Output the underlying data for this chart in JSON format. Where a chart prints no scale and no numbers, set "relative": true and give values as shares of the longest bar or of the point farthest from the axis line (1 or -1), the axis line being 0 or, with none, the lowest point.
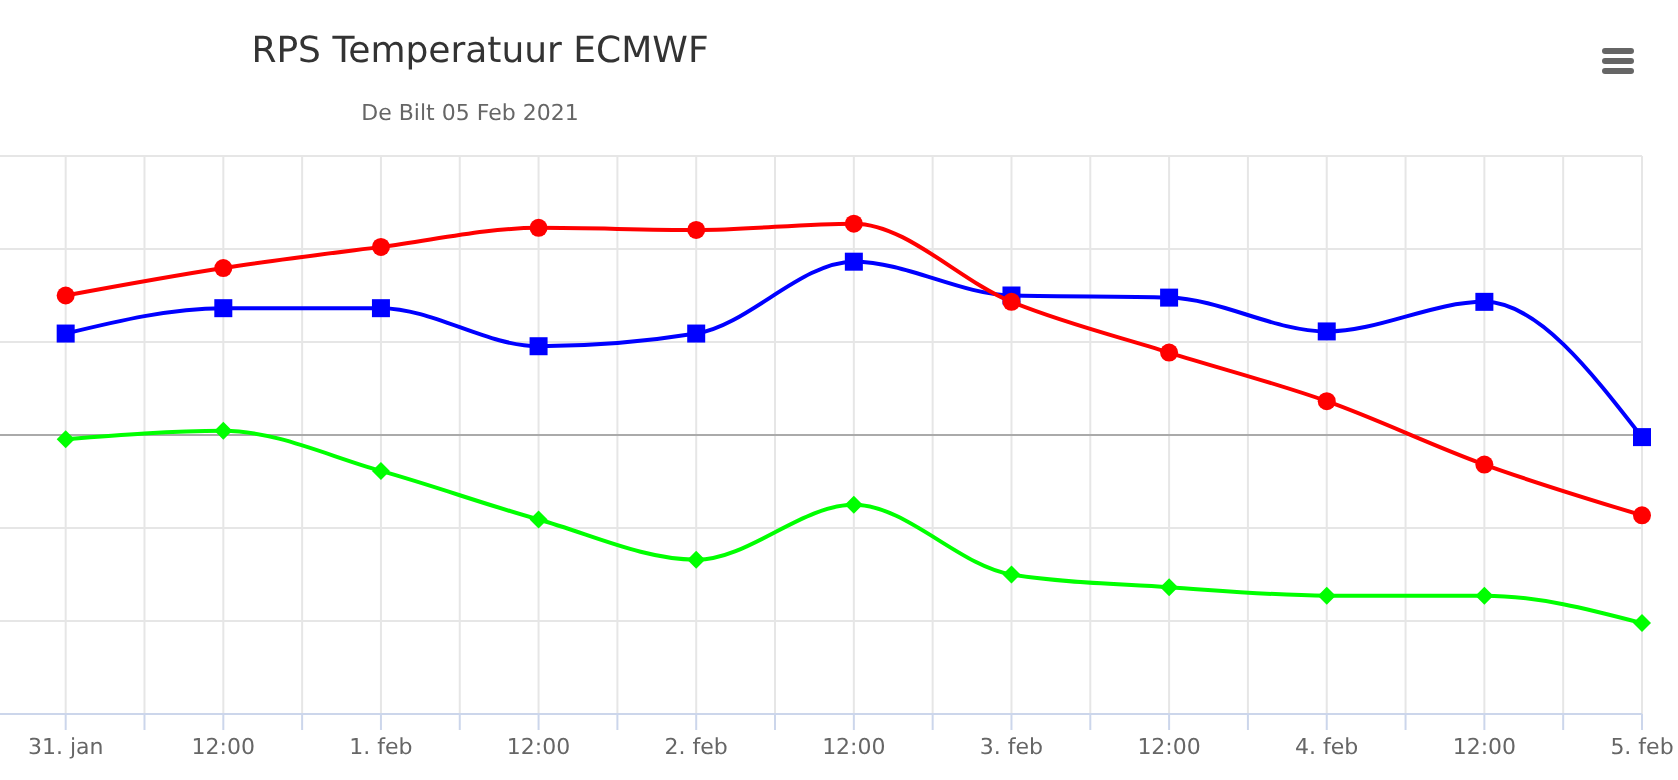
{
  "chart_data": {
    "type": "line",
    "title": "RPS Temperatuur ECMWF",
    "subtitle": "De Bilt 05 Feb 2021",
    "relative": true,
    "grid": true,
    "x": [
      "2021-01-31T00:00",
      "2021-01-31T12:00",
      "2021-02-01T00:00",
      "2021-02-01T12:00",
      "2021-02-02T00:00",
      "2021-02-02T12:00",
      "2021-02-03T00:00",
      "2021-02-03T12:00",
      "2021-02-04T00:00",
      "2021-02-04T12:00",
      "2021-02-05T00:00"
    ],
    "xlim": [
      "2021-01-30T19:00",
      "2021-02-05T00:00"
    ],
    "xticks": [
      {
        "value": "2021-01-31T00:00",
        "label": "31. jan"
      },
      {
        "value": "2021-01-31T06:00",
        "label": null
      },
      {
        "value": "2021-01-31T12:00",
        "label": "12:00"
      },
      {
        "value": "2021-01-31T18:00",
        "label": null
      },
      {
        "value": "2021-02-01T00:00",
        "label": "1. feb"
      },
      {
        "value": "2021-02-01T06:00",
        "label": null
      },
      {
        "value": "2021-02-01T12:00",
        "label": "12:00"
      },
      {
        "value": "2021-02-01T18:00",
        "label": null
      },
      {
        "value": "2021-02-02T00:00",
        "label": "2. feb"
      },
      {
        "value": "2021-02-02T06:00",
        "label": null
      },
      {
        "value": "2021-02-02T12:00",
        "label": "12:00"
      },
      {
        "value": "2021-02-02T18:00",
        "label": null
      },
      {
        "value": "2021-02-03T00:00",
        "label": "3. feb"
      },
      {
        "value": "2021-02-03T06:00",
        "label": null
      },
      {
        "value": "2021-02-03T12:00",
        "label": "12:00"
      },
      {
        "value": "2021-02-03T18:00",
        "label": null
      },
      {
        "value": "2021-02-04T00:00",
        "label": "4. feb"
      },
      {
        "value": "2021-02-04T06:00",
        "label": null
      },
      {
        "value": "2021-02-04T12:00",
        "label": "12:00"
      },
      {
        "value": "2021-02-04T18:00",
        "label": null
      },
      {
        "value": "2021-02-05T00:00",
        "label": "5. feb"
      }
    ],
    "series": [
      {
        "color": "#ff0000",
        "marker": "circle",
        "values": [
          0.66,
          0.79,
          0.89,
          0.98,
          0.97,
          1,
          0.63,
          0.39,
          0.16,
          -0.14,
          -0.38
        ]
      },
      {
        "color": "#0000ff",
        "marker": "square",
        "values": [
          0.48,
          0.6,
          0.6,
          0.42,
          0.48,
          0.82,
          0.66,
          0.65,
          0.49,
          0.63,
          -0.01
        ]
      },
      {
        "color": "#00ff00",
        "marker": "diamond",
        "values": [
          -0.02,
          0.02,
          -0.17,
          -0.4,
          -0.59,
          -0.33,
          -0.66,
          -0.72,
          -0.76,
          -0.76,
          -0.89
        ]
      }
    ]
  }
}
